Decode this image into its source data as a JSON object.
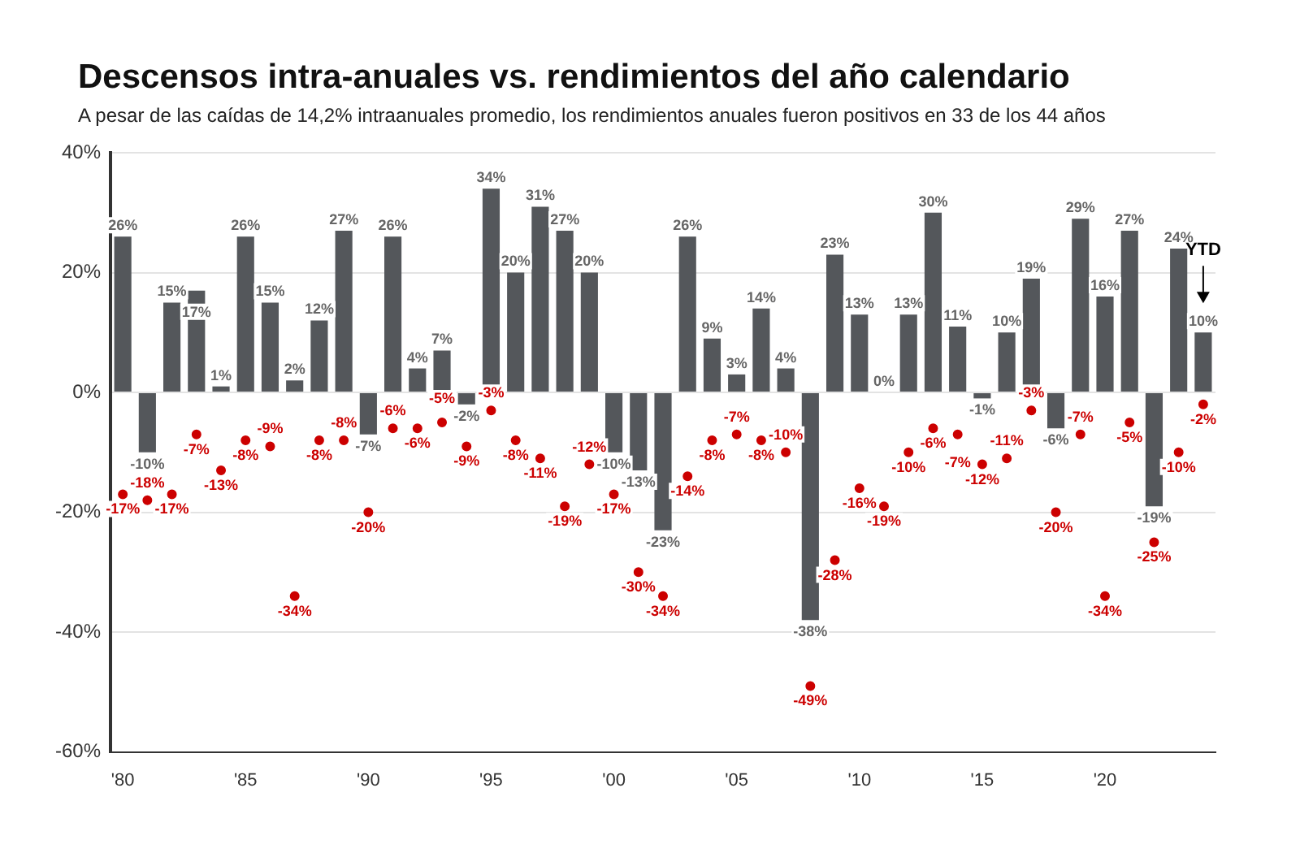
{
  "chart_data": {
    "type": "bar",
    "title": "Descensos intra-anuales vs. rendimientos del año calendario",
    "subtitle": "A pesar de las caídas de 14,2%  intraanuales promedio, los rendimientos anuales fueron positivos en 33 de los 44 años",
    "categories": [
      "'80",
      null,
      null,
      null,
      null,
      "'85",
      null,
      null,
      null,
      null,
      "'90",
      null,
      null,
      null,
      null,
      "'95",
      null,
      null,
      null,
      null,
      "'00",
      null,
      null,
      null,
      null,
      "'05",
      null,
      null,
      null,
      null,
      "'10",
      null,
      null,
      null,
      null,
      "'15",
      null,
      null,
      null,
      null,
      "'20",
      null,
      null,
      null,
      null
    ],
    "series": [
      {
        "color": "#54575b",
        "values": [
          26,
          -10,
          15,
          17,
          1,
          26,
          15,
          2,
          12,
          27,
          -7,
          26,
          4,
          7,
          -2,
          34,
          20,
          31,
          27,
          20,
          -10,
          -13,
          -23,
          26,
          9,
          3,
          14,
          4,
          -38,
          23,
          13,
          0,
          13,
          30,
          11,
          -1,
          10,
          19,
          -6,
          29,
          16,
          27,
          -19,
          24,
          10
        ],
        "value_labels": [
          "26%",
          "-10%",
          "15%",
          "17%",
          "1%",
          "26%",
          "15%",
          "2%",
          "12%",
          "27%",
          "-7%",
          "26%",
          "4%",
          "7%",
          "-2%",
          "34%",
          "20%",
          "31%",
          "27%",
          "20%",
          "-10%",
          "-13%",
          "-23%",
          "26%",
          "9%",
          "3%",
          "14%",
          "4%",
          "-38%",
          "23%",
          "13%",
          "0%",
          "13%",
          "30%",
          "11%",
          "-1%",
          "10%",
          "19%",
          "-6%",
          "29%",
          "16%",
          "27%",
          "-19%",
          "24%",
          "10%"
        ]
      },
      {
        "type": "scatter",
        "color": "#cc0000",
        "values": [
          -17,
          -18,
          -17,
          -7,
          -13,
          -8,
          -9,
          -34,
          -8,
          -8,
          -20,
          -6,
          -6,
          -5,
          -9,
          -3,
          -8,
          -11,
          -19,
          -12,
          -17,
          -30,
          -34,
          -14,
          -8,
          -7,
          -8,
          -10,
          -49,
          -28,
          -16,
          -19,
          -10,
          -6,
          -7,
          -12,
          -11,
          -3,
          -20,
          -7,
          -34,
          -5,
          -25,
          -10,
          -2
        ],
        "value_labels": [
          "-17%",
          "-18%",
          "-17%",
          "-7%",
          "-13%",
          "-8%",
          "-9%",
          "-34%",
          "-8%",
          "-8%",
          "-20%",
          "-6%",
          "-6%",
          "-5%",
          "-9%",
          "-3%",
          "-8%",
          "-11%",
          "-19%",
          "-12%",
          "-17%",
          "-30%",
          "-34%",
          "-14%",
          "-8%",
          "-7%",
          "-8%",
          "-10%",
          "-49%",
          "-28%",
          "-16%",
          "-19%",
          "-10%",
          "-6%",
          "-7%",
          "-12%",
          "-11%",
          "-3%",
          "-20%",
          "-7%",
          "-34%",
          "-5%",
          "-25%",
          "-10%",
          "-2%"
        ]
      }
    ],
    "ylim": [
      -60,
      40
    ],
    "yticks": [
      {
        "value": -60,
        "label": "-60%"
      },
      {
        "value": -40,
        "label": "-40%"
      },
      {
        "value": -20,
        "label": "-20%"
      },
      {
        "value": 0,
        "label": "0%"
      },
      {
        "value": 20,
        "label": "20%"
      },
      {
        "value": 40,
        "label": "40%"
      }
    ],
    "grid": "y",
    "legend": false,
    "marker": "circle",
    "annotations": [
      "YTD"
    ]
  }
}
